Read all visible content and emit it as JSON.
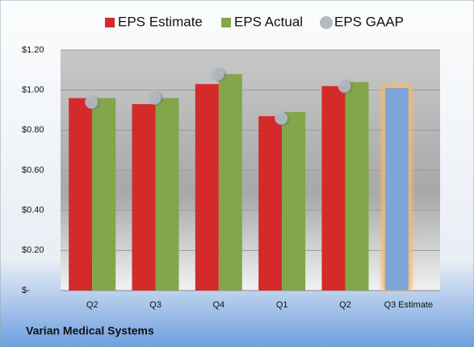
{
  "chart_data": {
    "type": "bar",
    "title": "Varian Medical Systems",
    "categories": [
      "Q2",
      "Q3",
      "Q4",
      "Q1",
      "Q2",
      "Q3 Estimate"
    ],
    "series": [
      {
        "name": "EPS Estimate",
        "color": "#d42a2a",
        "values": [
          0.96,
          0.93,
          1.03,
          0.87,
          1.02,
          1.01
        ],
        "highlight": {
          "index": 5,
          "color": "#7ea5d8",
          "glow": "#f7b968"
        }
      },
      {
        "name": "EPS Actual",
        "color": "#82a64a",
        "values": [
          0.96,
          0.96,
          1.08,
          0.89,
          1.04,
          null
        ]
      },
      {
        "name": "EPS GAAP",
        "color": "#b4bac2",
        "marker": "circle",
        "values": [
          0.94,
          0.96,
          1.08,
          0.86,
          1.02,
          null
        ]
      }
    ],
    "ylim": [
      0,
      1.2
    ],
    "yticks": [
      {
        "value": 0,
        "label": "$-"
      },
      {
        "value": 0.2,
        "label": "$0.20"
      },
      {
        "value": 0.4,
        "label": "$0.40"
      },
      {
        "value": 0.6,
        "label": "$0.60"
      },
      {
        "value": 0.8,
        "label": "$0.80"
      },
      {
        "value": 1.0,
        "label": "$1.00"
      },
      {
        "value": 1.2,
        "label": "$1.20"
      }
    ],
    "grid": true
  }
}
